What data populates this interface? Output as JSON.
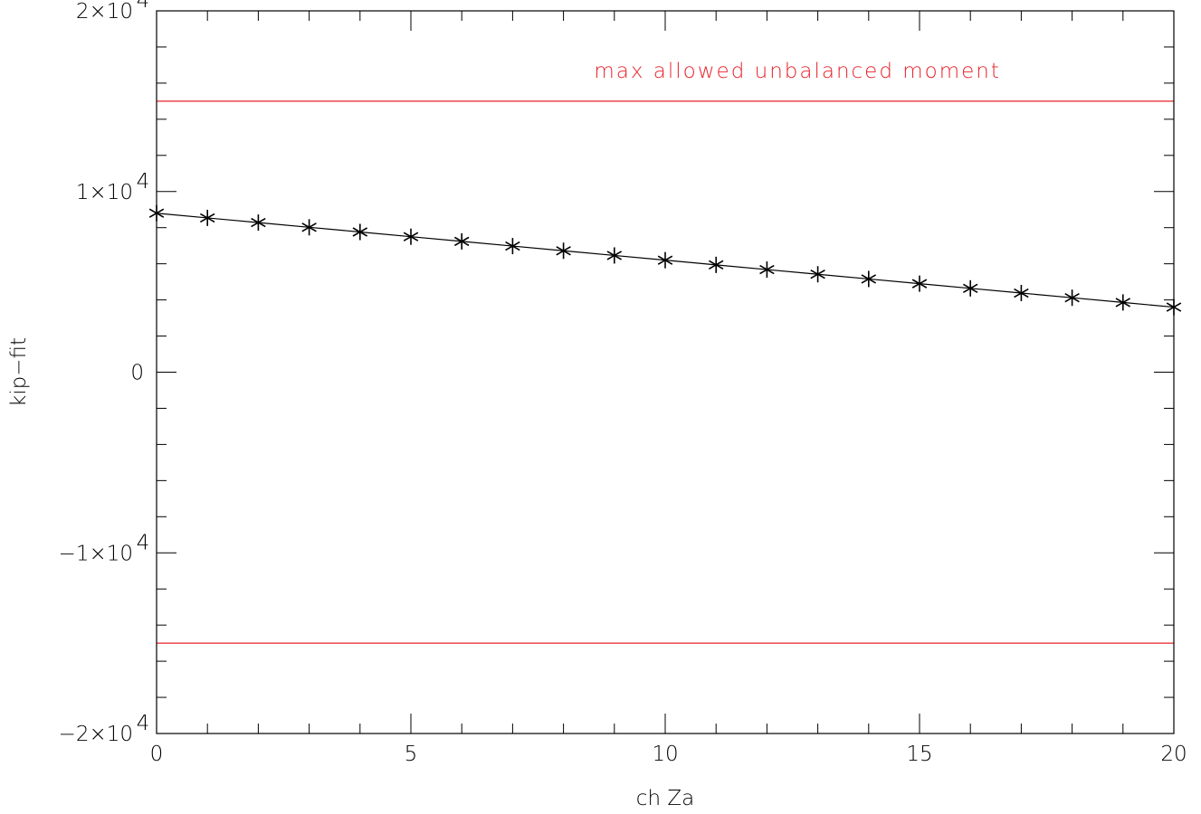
{
  "chart_data": {
    "type": "line",
    "title": "",
    "xlabel": "ch Za",
    "ylabel": "kip−fit",
    "xlim": [
      0,
      20
    ],
    "ylim": [
      -20000,
      20000
    ],
    "x_ticks": [
      {
        "value": 0,
        "label": "0"
      },
      {
        "value": 5,
        "label": "5"
      },
      {
        "value": 10,
        "label": "10"
      },
      {
        "value": 15,
        "label": "15"
      },
      {
        "value": 20,
        "label": "20"
      }
    ],
    "y_ticks": [
      {
        "value": -20000,
        "label": "−2×10",
        "exp": "4"
      },
      {
        "value": -10000,
        "label": "−1×10",
        "exp": "4"
      },
      {
        "value": 0,
        "label": "0",
        "exp": ""
      },
      {
        "value": 10000,
        "label": "1×10",
        "exp": "4"
      },
      {
        "value": 20000,
        "label": "2×10",
        "exp": "4"
      }
    ],
    "series": [
      {
        "type": "line+markers",
        "marker": "asterisk",
        "color": "#000000",
        "x": [
          0,
          1,
          2,
          3,
          4,
          5,
          6,
          7,
          8,
          9,
          10,
          11,
          12,
          13,
          14,
          15,
          16,
          17,
          18,
          19,
          20
        ],
        "y": [
          8800,
          8540,
          8280,
          8020,
          7760,
          7500,
          7240,
          6980,
          6720,
          6460,
          6200,
          5940,
          5680,
          5420,
          5160,
          4900,
          4640,
          4380,
          4120,
          3860,
          3600
        ]
      }
    ],
    "reference_lines": [
      {
        "y": 15000,
        "color": "#e8212a"
      },
      {
        "y": -15000,
        "color": "#e8212a"
      }
    ],
    "annotations": [
      {
        "text": "max allowed unbalanced moment",
        "x": 12.6,
        "y": 16700,
        "color": "#e8212a"
      }
    ],
    "grid": false
  }
}
